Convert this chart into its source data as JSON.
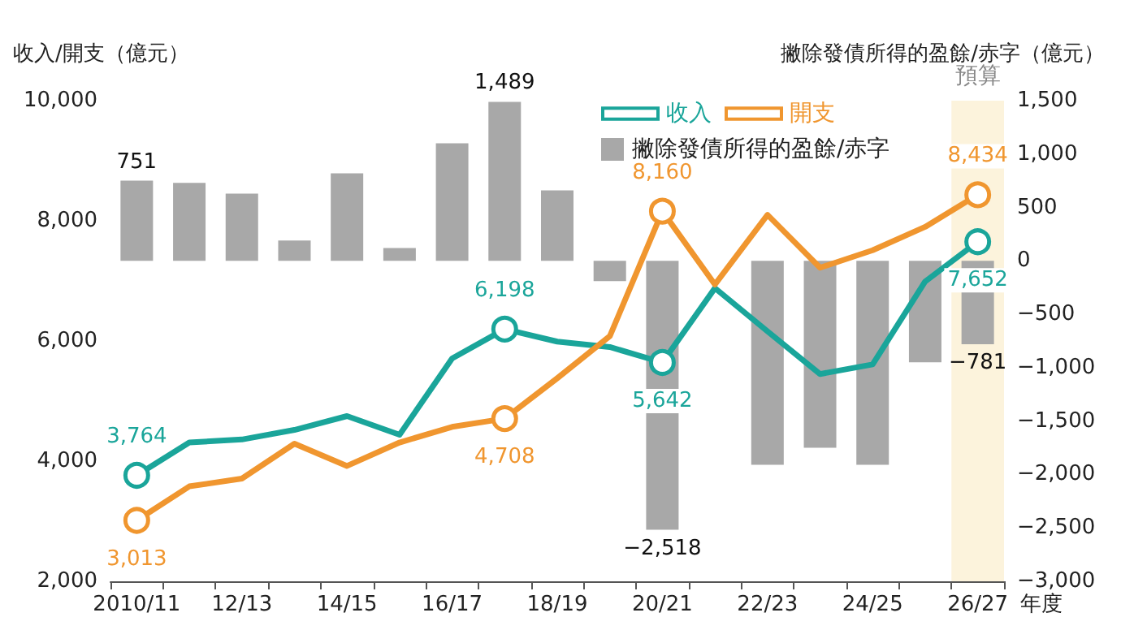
{
  "chart_data": {
    "type": "line",
    "categories": [
      "2010/11",
      null,
      "12/13",
      null,
      "14/15",
      null,
      "16/17",
      null,
      "18/19",
      null,
      "20/21",
      null,
      "22/23",
      null,
      "24/25",
      null,
      "26/27"
    ],
    "xlabel": "年度",
    "ylabel": "收入/開支（億元）",
    "y2label": "撇除發債所得的盈餘/赤字（億元）",
    "series": [
      {
        "name": "撇除發債所得的盈餘/赤字",
        "type": "bar",
        "axis": "y2",
        "color": "#a8a8a8",
        "values": [
          751,
          730,
          630,
          190,
          820,
          120,
          1100,
          1489,
          660,
          -190,
          -2518,
          null,
          -1910,
          -1750,
          -1910,
          -950,
          -781
        ],
        "value_labels": [
          "751",
          null,
          null,
          null,
          null,
          null,
          null,
          "1,489",
          null,
          null,
          "−2,518",
          null,
          null,
          null,
          null,
          null,
          "−781"
        ]
      },
      {
        "name": "收入",
        "color": "#1aa59a",
        "values": [
          3764,
          4310,
          4360,
          4520,
          4750,
          4440,
          5710,
          6198,
          5990,
          5900,
          5642,
          6880,
          6160,
          5450,
          5610,
          6990,
          7652
        ],
        "value_labels": [
          "3,764",
          null,
          null,
          null,
          null,
          null,
          null,
          "6,198",
          null,
          null,
          "5,642",
          null,
          null,
          null,
          null,
          null,
          "7,652"
        ]
      },
      {
        "name": "開支",
        "color": "#f0962f",
        "values": [
          3013,
          3580,
          3710,
          4290,
          3920,
          4310,
          4570,
          4708,
          5380,
          6080,
          8160,
          6940,
          8100,
          7220,
          7510,
          7900,
          8434
        ],
        "value_labels": [
          "3,013",
          null,
          null,
          null,
          null,
          null,
          null,
          "4,708",
          null,
          null,
          "8,160",
          null,
          null,
          null,
          null,
          null,
          "8,434"
        ]
      }
    ],
    "ylim": [
      2000,
      10000
    ],
    "yticks": [
      {
        "value": 2000,
        "label": "2,000"
      },
      {
        "value": 4000,
        "label": "4,000"
      },
      {
        "value": 6000,
        "label": "6,000"
      },
      {
        "value": 8000,
        "label": "8,000"
      },
      {
        "value": 10000,
        "label": "10,000"
      }
    ],
    "y2lim": [
      -3000,
      1500
    ],
    "y2ticks": [
      {
        "value": -3000,
        "label": "−3,000"
      },
      {
        "value": -2500,
        "label": "−2,500"
      },
      {
        "value": -2000,
        "label": "−2,000"
      },
      {
        "value": -1500,
        "label": "−1,500"
      },
      {
        "value": -1000,
        "label": "−1,000"
      },
      {
        "value": -500,
        "label": "−500"
      },
      {
        "value": 0,
        "label": "0"
      },
      {
        "value": 500,
        "label": "500"
      },
      {
        "value": 1000,
        "label": "1,000"
      },
      {
        "value": 1500,
        "label": "1,500"
      }
    ],
    "bands": [
      {
        "axis": "x",
        "from": "26/27",
        "to": "26/27",
        "label": "預算",
        "color": "#fcf3dc"
      }
    ],
    "legend": "top right",
    "grid": false
  }
}
